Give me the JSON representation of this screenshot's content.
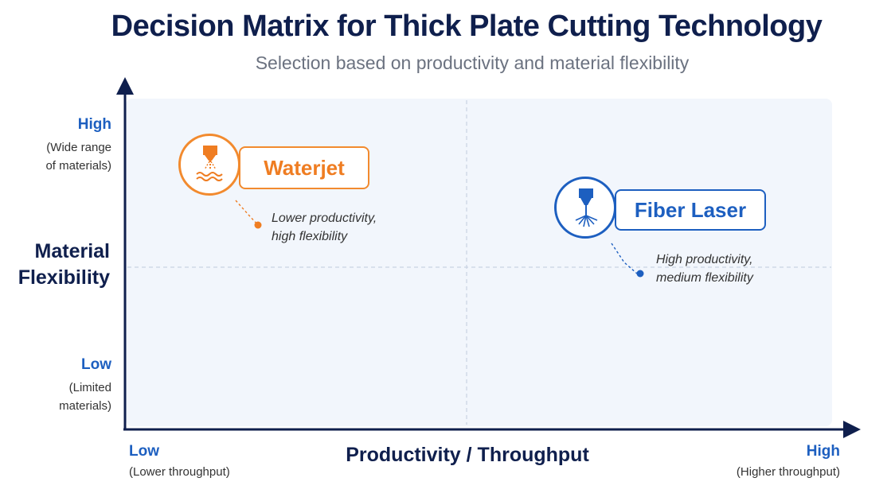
{
  "title": "Decision Matrix for Thick Plate Cutting Technology",
  "subtitle": "Selection based on productivity and material flexibility",
  "y_axis": {
    "title_line1": "Material",
    "title_line2": "Flexibility",
    "high_label": "High",
    "high_sub_line1": "(Wide range",
    "high_sub_line2": "of materials)",
    "low_label": "Low",
    "low_sub_line1": "(Limited",
    "low_sub_line2": "materials)"
  },
  "x_axis": {
    "title": "Productivity / Throughput",
    "low_label": "Low",
    "low_sub": "(Lower throughput)",
    "high_label": "High",
    "high_sub": "(Higher throughput)"
  },
  "items": [
    {
      "name": "Waterjet",
      "note_line1": "Lower productivity,",
      "note_line2": "high flexibility",
      "color": "#ef7d22",
      "icon": "waterjet-nozzle-icon",
      "productivity_quadrant": "low",
      "flexibility_quadrant": "high"
    },
    {
      "name": "Fiber Laser",
      "note_line1": "High productivity,",
      "note_line2": "medium flexibility",
      "color": "#1d5fc0",
      "icon": "laser-nozzle-icon",
      "productivity_quadrant": "high",
      "flexibility_quadrant": "medium"
    }
  ],
  "colors": {
    "axis": "#0f1f4d",
    "accent_blue": "#1d5fc0",
    "accent_orange": "#ef7d22",
    "plot_background": "#f2f6fc"
  }
}
